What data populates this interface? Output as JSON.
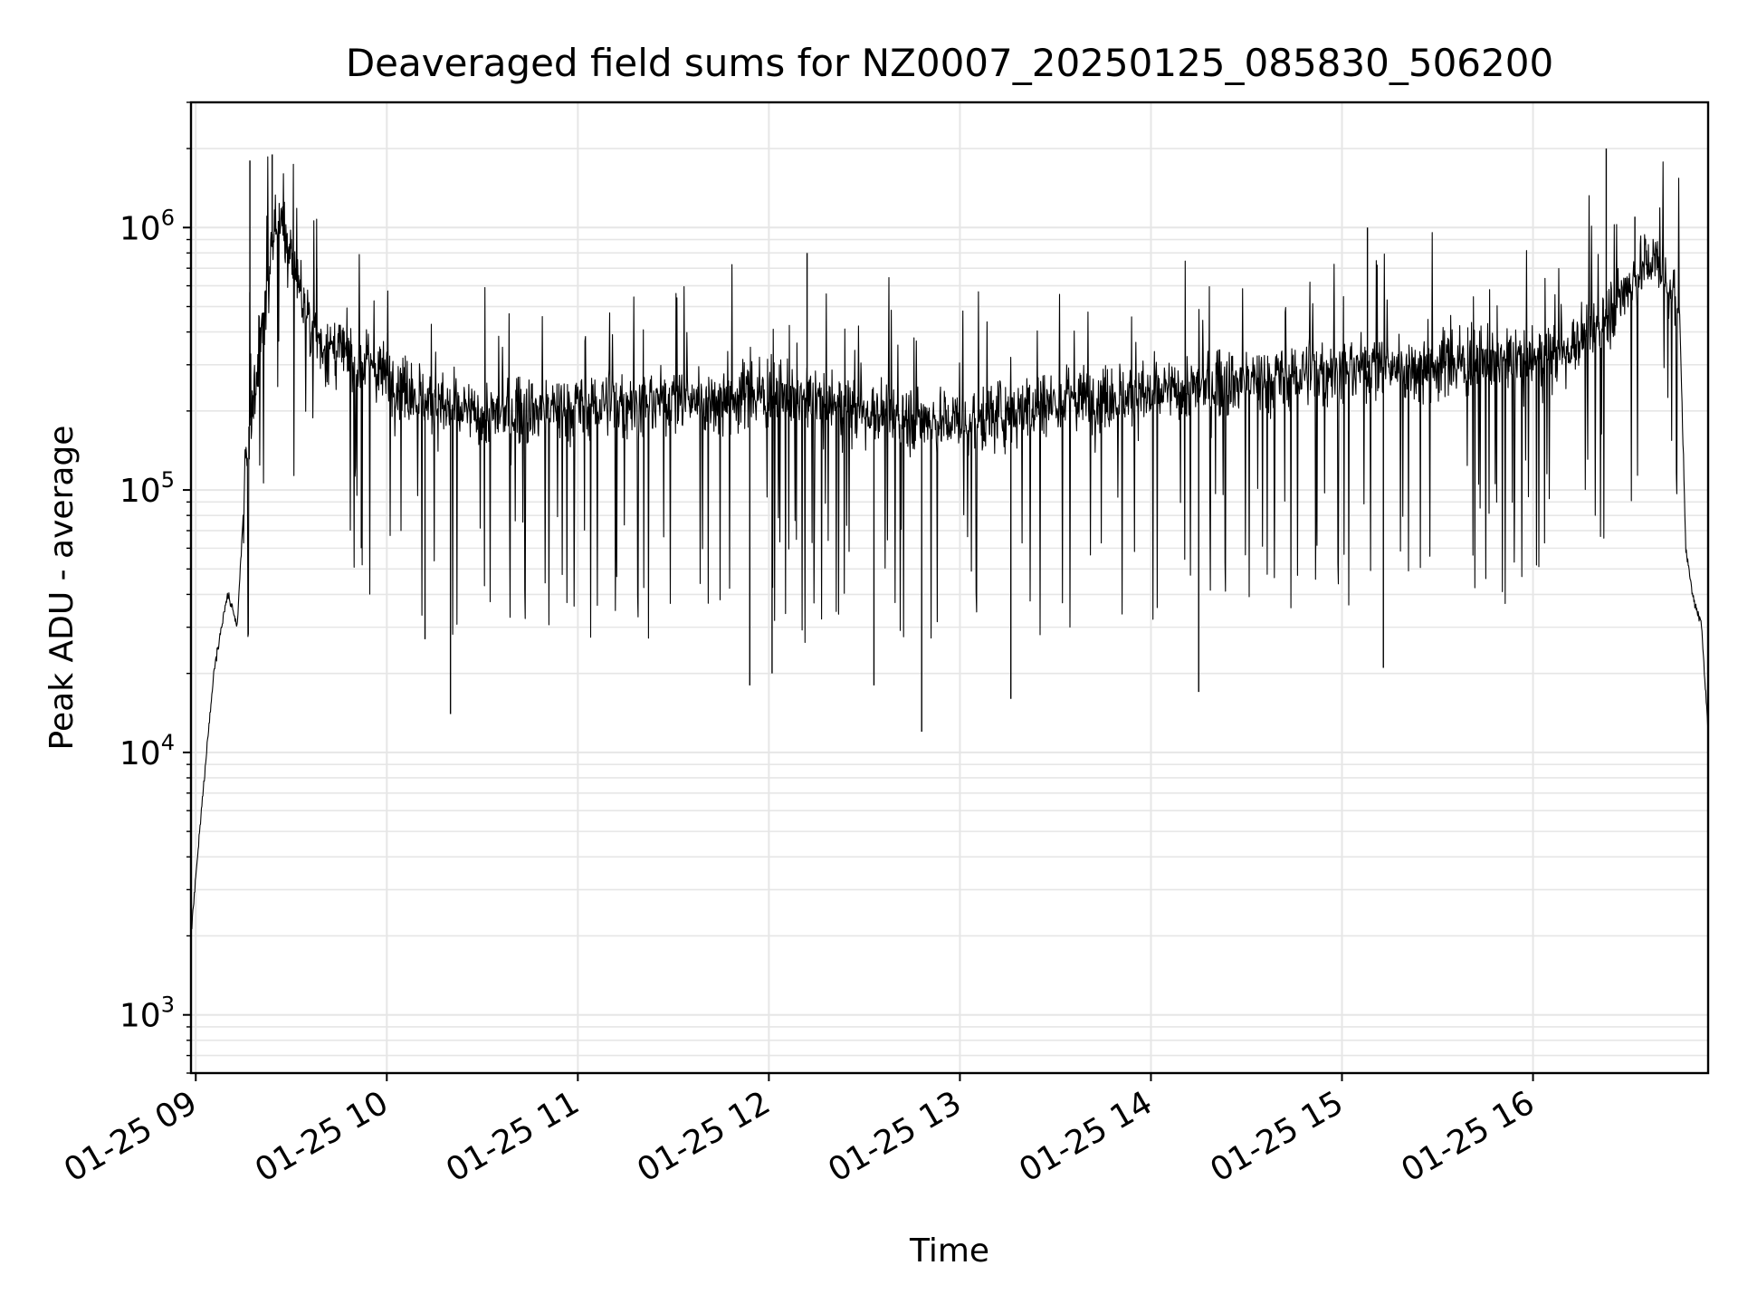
{
  "chart_data": {
    "type": "line",
    "title": "Deaveraged field sums for NZ0007_20250125_085830_506200",
    "xlabel": "Time",
    "ylabel": "Peak ADU - average",
    "yscale": "log",
    "ylim": [
      600,
      3000000
    ],
    "xlim": [
      "2025-01-25 08:58:30",
      "2025-01-25 16:55:00"
    ],
    "x_ticks": [
      "01-25 09",
      "01-25 10",
      "01-25 11",
      "01-25 12",
      "01-25 13",
      "01-25 14",
      "01-25 15",
      "01-25 16"
    ],
    "y_ticks": [
      {
        "base": "10",
        "exp": "3",
        "value": 1000
      },
      {
        "base": "10",
        "exp": "4",
        "value": 10000
      },
      {
        "base": "10",
        "exp": "5",
        "value": 100000
      },
      {
        "base": "10",
        "exp": "6",
        "value": 1000000
      }
    ],
    "grid": true,
    "line_color": "#000000",
    "grid_color": "#e6e6e6",
    "series": [
      {
        "x": [
          "2025-01-25 08:58:30",
          "2025-01-25 09:03:00",
          "2025-01-25 09:06:00",
          "2025-01-25 09:10:00",
          "2025-01-25 09:13:00",
          "2025-01-25 09:16:00",
          "2025-01-25 09:20:00",
          "2025-01-25 09:25:00",
          "2025-01-25 09:30:00",
          "2025-01-25 09:35:00",
          "2025-01-25 09:40:00",
          "2025-01-25 09:50:00",
          "2025-01-25 10:00:00",
          "2025-01-25 10:15:00",
          "2025-01-25 10:30:00",
          "2025-01-25 10:45:00",
          "2025-01-25 11:00:00",
          "2025-01-25 11:30:00",
          "2025-01-25 12:00:00",
          "2025-01-25 12:30:00",
          "2025-01-25 13:00:00",
          "2025-01-25 13:30:00",
          "2025-01-25 14:00:00",
          "2025-01-25 14:30:00",
          "2025-01-25 15:00:00",
          "2025-01-25 15:30:00",
          "2025-01-25 16:00:00",
          "2025-01-25 16:10:00",
          "2025-01-25 16:20:00",
          "2025-01-25 16:30:00",
          "2025-01-25 16:36:00",
          "2025-01-25 16:40:00",
          "2025-01-25 16:43:00",
          "2025-01-25 16:46:00",
          "2025-01-25 16:48:00",
          "2025-01-25 16:50:00",
          "2025-01-25 16:53:00",
          "2025-01-25 16:55:00"
        ],
        "values": [
          2000,
          9000,
          22000,
          40000,
          30000,
          140000,
          350000,
          1050000,
          800000,
          450000,
          350000,
          320000,
          270000,
          210000,
          190000,
          200000,
          210000,
          220000,
          230000,
          200000,
          180000,
          220000,
          230000,
          260000,
          290000,
          300000,
          310000,
          340000,
          420000,
          600000,
          750000,
          700000,
          600000,
          500000,
          60000,
          40000,
          30000,
          12000
        ]
      }
    ],
    "spikes_up": [
      {
        "x": "2025-01-25 09:17:00",
        "y": 1800000
      },
      {
        "x": "2025-01-25 09:24:00",
        "y": 1900000
      },
      {
        "x": "2025-01-25 09:38:00",
        "y": 700000
      },
      {
        "x": "2025-01-25 12:12:00",
        "y": 800000
      },
      {
        "x": "2025-01-25 15:08:00",
        "y": 1000000
      },
      {
        "x": "2025-01-25 16:23:00",
        "y": 2000000
      },
      {
        "x": "2025-01-25 16:32:00",
        "y": 1100000
      }
    ],
    "spikes_down": [
      {
        "x": "2025-01-25 09:52:00",
        "y": 60000
      },
      {
        "x": "2025-01-25 10:12:00",
        "y": 27000
      },
      {
        "x": "2025-01-25 10:20:00",
        "y": 14000
      },
      {
        "x": "2025-01-25 11:54:00",
        "y": 18000
      },
      {
        "x": "2025-01-25 12:01:00",
        "y": 20000
      },
      {
        "x": "2025-01-25 12:33:00",
        "y": 18000
      },
      {
        "x": "2025-01-25 12:48:00",
        "y": 12000
      },
      {
        "x": "2025-01-25 13:16:00",
        "y": 16000
      },
      {
        "x": "2025-01-25 14:15:00",
        "y": 17000
      },
      {
        "x": "2025-01-25 15:13:00",
        "y": 21000
      }
    ]
  }
}
